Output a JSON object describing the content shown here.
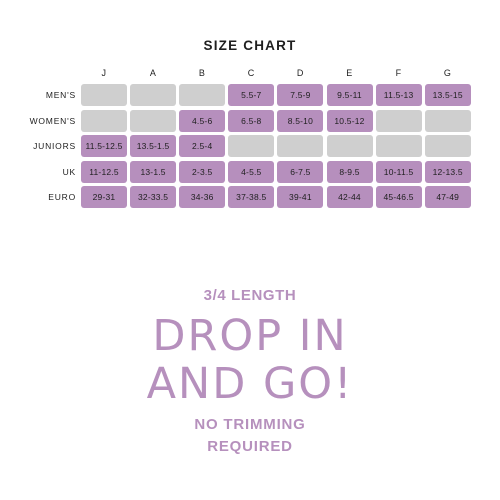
{
  "title": "SIZE CHART",
  "columns": [
    "J",
    "A",
    "B",
    "C",
    "D",
    "E",
    "F",
    "G"
  ],
  "rows": [
    {
      "label": "MEN'S",
      "cells": [
        "",
        "",
        "",
        "5.5-7",
        "7.5-9",
        "9.5-11",
        "11.5-13",
        "13.5-15"
      ]
    },
    {
      "label": "WOMEN'S",
      "cells": [
        "",
        "",
        "4.5-6",
        "6.5-8",
        "8.5-10",
        "10.5-12",
        "",
        ""
      ]
    },
    {
      "label": "JUNIORS",
      "cells": [
        "11.5-12.5",
        "13.5-1.5",
        "2.5-4",
        "",
        "",
        "",
        "",
        ""
      ]
    },
    {
      "label": "UK",
      "cells": [
        "11-12.5",
        "13-1.5",
        "2-3.5",
        "4-5.5",
        "6-7.5",
        "8-9.5",
        "10-11.5",
        "12-13.5"
      ]
    },
    {
      "label": "EURO",
      "cells": [
        "29-31",
        "32-33.5",
        "34-36",
        "37-38.5",
        "39-41",
        "42-44",
        "45-46.5",
        "47-49"
      ]
    }
  ],
  "promo": {
    "length": "3/4 LENGTH",
    "headline_line1": "DROP IN",
    "headline_line2": "AND GO!",
    "sub_line1": "NO TRIMMING",
    "sub_line2": "REQUIRED"
  },
  "colors": {
    "filled_cell": "#b68fbd",
    "empty_cell": "#cfcfcf",
    "accent_text": "#b690bd",
    "body_text": "#1f1f1f"
  }
}
